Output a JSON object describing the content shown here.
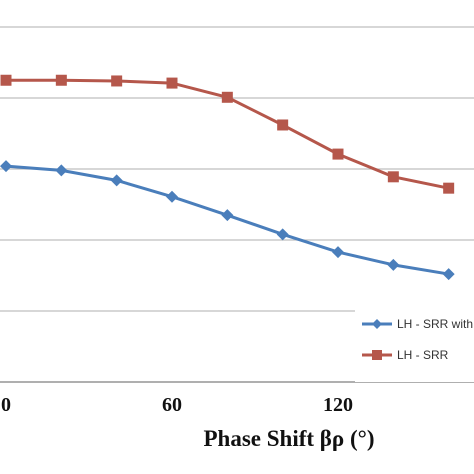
{
  "chart_data": {
    "type": "line",
    "title": "",
    "xlabel": "Phase Shift βρ (°)",
    "ylabel": "",
    "x_tick_labels": [
      "0",
      "60",
      "120"
    ],
    "x_ticks": [
      0,
      60,
      120
    ],
    "xlim": [
      0,
      170
    ],
    "grid": true,
    "grid_y_count": 6,
    "legend_position": "bottom-right",
    "series": [
      {
        "name": "LH - SRR",
        "color": "#B5574B",
        "marker": "square",
        "x": [
          0,
          20,
          40,
          60,
          80,
          100,
          120,
          140,
          160
        ],
        "y": [
          5.25,
          5.25,
          5.24,
          5.21,
          5.01,
          4.62,
          4.21,
          3.89,
          3.73
        ]
      },
      {
        "name": "LH - SRR with",
        "color": "#4A7EBB",
        "marker": "diamond",
        "x": [
          0,
          20,
          40,
          60,
          80,
          100,
          120,
          140,
          160
        ],
        "y": [
          4.04,
          3.98,
          3.84,
          3.61,
          3.35,
          3.08,
          2.83,
          2.65,
          2.52
        ]
      }
    ]
  }
}
